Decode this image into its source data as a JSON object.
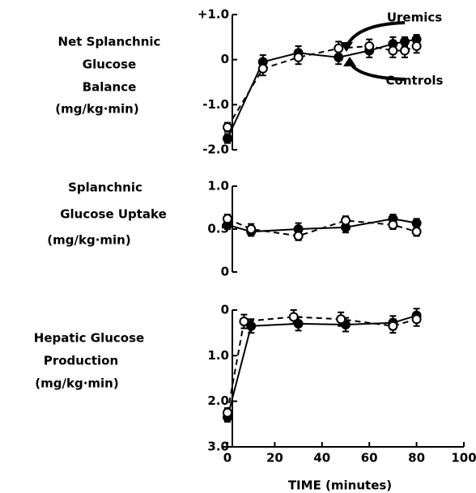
{
  "chart_data": [
    {
      "type": "line",
      "ylabel": [
        "Net Splanchnic",
        "Glucose",
        "Balance",
        "(mg/kg·min)"
      ],
      "ylim": [
        -2,
        1
      ],
      "yticks": [
        {
          "value": 1,
          "label": "+1.0"
        },
        0,
        {
          "value": -1,
          "label": "-1.0"
        },
        {
          "value": -2,
          "label": "-2.0"
        }
      ],
      "xlim": [
        0,
        100
      ],
      "series": [
        {
          "name": "Uremics",
          "color": "#000000",
          "marker": "filled",
          "dash": "solid",
          "x": [
            0,
            15,
            30,
            47,
            60,
            70,
            75,
            80
          ],
          "values": [
            -1.75,
            -0.05,
            0.15,
            0.05,
            0.2,
            0.35,
            0.4,
            0.45
          ],
          "errors": [
            0.1,
            0.15,
            0.15,
            0.15,
            0.15,
            0.15,
            0.1,
            0.1
          ]
        },
        {
          "name": "Controls",
          "color": "#000000",
          "marker": "open",
          "dash": "dashed",
          "x": [
            0,
            15,
            30,
            47,
            60,
            70,
            75,
            80
          ],
          "values": [
            -1.5,
            -0.2,
            0.05,
            0.25,
            0.3,
            0.2,
            0.2,
            0.3
          ],
          "errors": [
            0.1,
            0.15,
            0.15,
            0.15,
            0.15,
            0.15,
            0.15,
            0.15
          ]
        }
      ]
    },
    {
      "type": "line",
      "ylabel": [
        "Splanchnic",
        "Glucose  Uptake",
        "(mg/kg·min)"
      ],
      "ylim": [
        0,
        1
      ],
      "yticks": [
        {
          "value": 1,
          "label": "1.0"
        },
        0.5,
        0
      ],
      "xlim": [
        0,
        100
      ],
      "series": [
        {
          "color": "#000000",
          "marker": "filled",
          "dash": "solid",
          "x": [
            0,
            10,
            30,
            50,
            70,
            80
          ],
          "values": [
            0.55,
            0.47,
            0.5,
            0.52,
            0.62,
            0.57
          ],
          "errors": [
            0.05,
            0.05,
            0.07,
            0.06,
            0.05,
            0.05
          ]
        },
        {
          "color": "#000000",
          "marker": "open",
          "dash": "dashed",
          "x": [
            0,
            10,
            30,
            50,
            70,
            80
          ],
          "values": [
            0.62,
            0.5,
            0.42,
            0.6,
            0.55,
            0.47
          ],
          "errors": [
            0.05,
            0.06,
            0.05,
            0.05,
            0.05,
            0.05
          ]
        }
      ]
    },
    {
      "type": "line",
      "ylabel": [
        "Hepatic Glucose",
        "Production",
        "(mg/kg·min)"
      ],
      "ylim": [
        3,
        0
      ],
      "yticks": [
        0,
        {
          "value": 1,
          "label": "1.0"
        },
        {
          "value": 2,
          "label": "2.0"
        },
        {
          "value": 3,
          "label": "3.0"
        }
      ],
      "xlim": [
        0,
        100
      ],
      "xticks": [
        0,
        20,
        40,
        60,
        80,
        100
      ],
      "xlabel": "TIME (minutes)",
      "series": [
        {
          "color": "#000000",
          "marker": "filled",
          "dash": "solid",
          "x": [
            0,
            10,
            30,
            50,
            70,
            80
          ],
          "values": [
            2.35,
            0.35,
            0.3,
            0.32,
            0.28,
            0.12
          ],
          "errors": [
            0.1,
            0.15,
            0.15,
            0.15,
            0.15,
            0.15
          ]
        },
        {
          "color": "#000000",
          "marker": "open",
          "dash": "dashed",
          "x": [
            0,
            7,
            28,
            48,
            70,
            80
          ],
          "values": [
            2.25,
            0.25,
            0.15,
            0.2,
            0.35,
            0.2
          ],
          "errors": [
            0.1,
            0.15,
            0.15,
            0.15,
            0.15,
            0.15
          ]
        }
      ]
    }
  ]
}
